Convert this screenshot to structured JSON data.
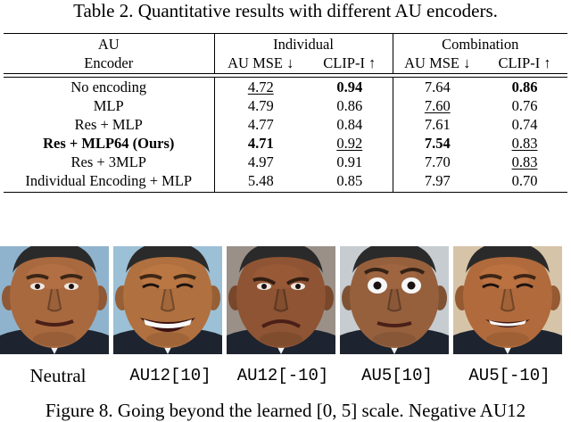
{
  "table_caption": "Table 2. Quantitative results with different AU encoders.",
  "header": {
    "col0_line1": "AU",
    "col0_line2": "Encoder",
    "group1": "Individual",
    "group2": "Combination",
    "metric1": "AU MSE ↓",
    "metric2": "CLIP-I ↑",
    "metric3": "AU MSE ↓",
    "metric4": "CLIP-I ↑"
  },
  "rows": [
    {
      "encoder": "No encoding",
      "ind_mse": "4.72",
      "ind_clip": "0.94",
      "comb_mse": "7.64",
      "comb_clip": "0.86"
    },
    {
      "encoder": "MLP",
      "ind_mse": "4.79",
      "ind_clip": "0.86",
      "comb_mse": "7.60",
      "comb_clip": "0.76"
    },
    {
      "encoder": "Res + MLP",
      "ind_mse": "4.77",
      "ind_clip": "0.84",
      "comb_mse": "7.61",
      "comb_clip": "0.74"
    },
    {
      "encoder": "Res + MLP64 (Ours)",
      "ind_mse": "4.71",
      "ind_clip": "0.92",
      "comb_mse": "7.54",
      "comb_clip": "0.83"
    },
    {
      "encoder": "Res + 3MLP",
      "ind_mse": "4.97",
      "ind_clip": "0.91",
      "comb_mse": "7.70",
      "comb_clip": "0.83"
    },
    {
      "encoder": "Individual Encoding + MLP",
      "ind_mse": "5.48",
      "ind_clip": "0.85",
      "comb_mse": "7.97",
      "comb_clip": "0.70"
    }
  ],
  "faces": [
    {
      "label": "Neutral",
      "expression": "neutral",
      "skin": "#a8693f",
      "bg": "#8fb3cc"
    },
    {
      "label": "AU12[10]",
      "expression": "big-smile",
      "skin": "#b0703f",
      "bg": "#9cc0d6"
    },
    {
      "label": "AU12[-10]",
      "expression": "frown",
      "skin": "#8e5433",
      "bg": "#9a9088"
    },
    {
      "label": "AU5[10]",
      "expression": "wide-eyes",
      "skin": "#96603d",
      "bg": "#c6ccd0"
    },
    {
      "label": "AU5[-10]",
      "expression": "squint-smile",
      "skin": "#b06a3c",
      "bg": "#d6c4a8"
    }
  ],
  "figure_caption": "Figure 8. Going beyond the learned [0, 5] scale. Negative AU12"
}
